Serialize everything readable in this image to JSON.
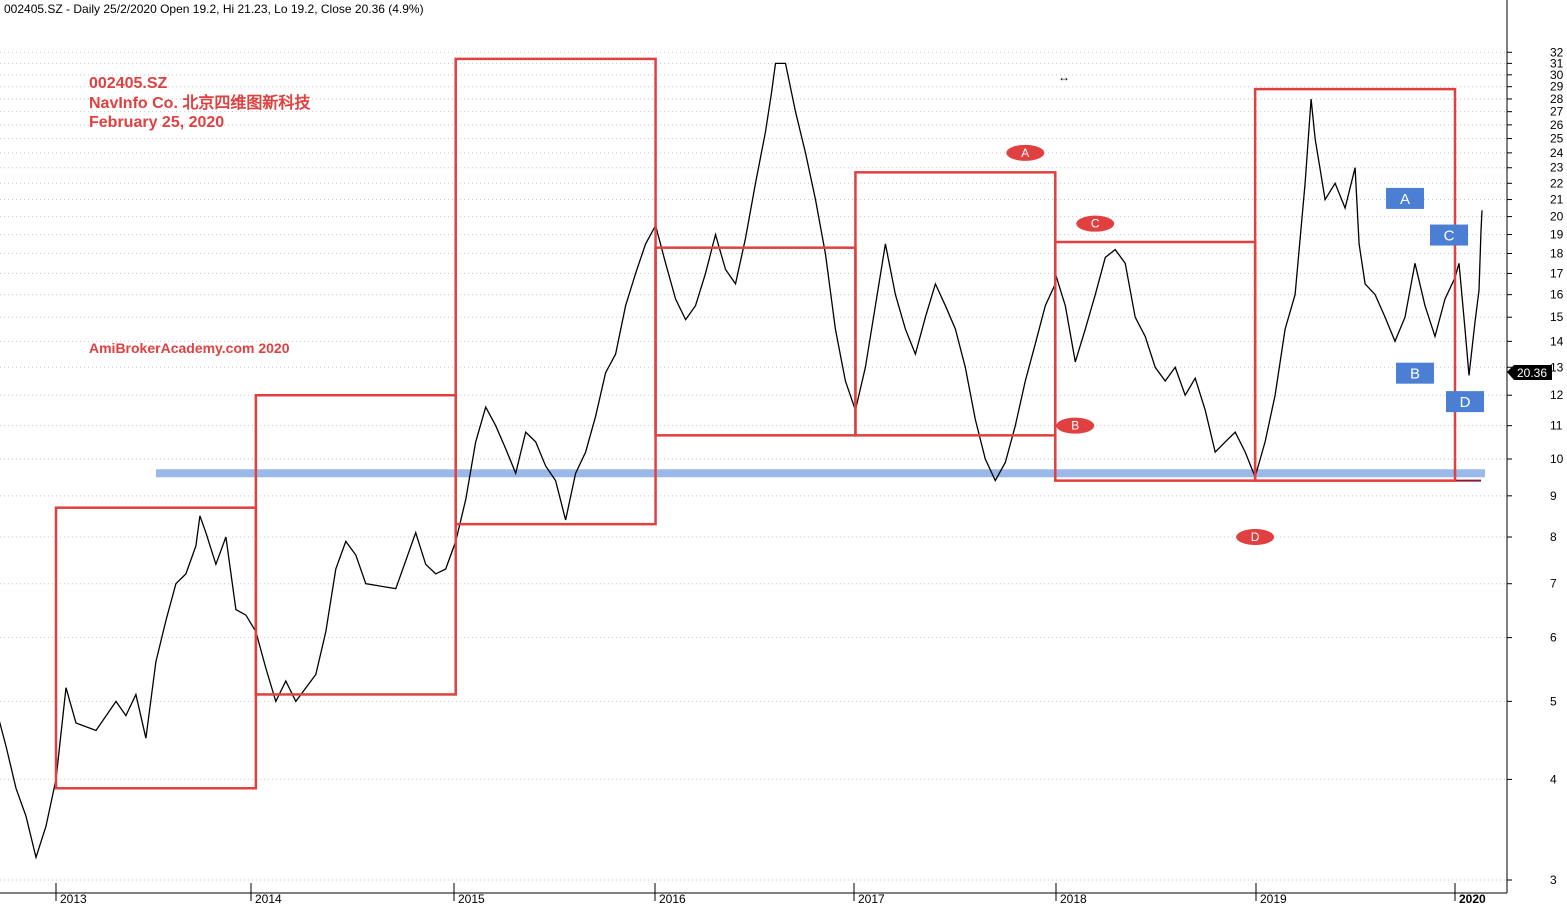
{
  "header_text": "002405.SZ - Daily 25/2/2020 Open 19.2, Hi 21.23, Lo 19.2, Close 20.36 (4.9%)",
  "annotation": {
    "ticker": "002405.SZ",
    "company": "NavInfo Co.  北京四维图新科技",
    "date": "February 25, 2020"
  },
  "watermark": "AmiBrokerAcademy.com   2020",
  "colors": {
    "box": "#e04040",
    "support": "#8fb0e6",
    "support_dark": "#8b1a3a",
    "price": "#000000",
    "red_label": "#e04040",
    "blue_label": "#4a7fd4",
    "grid": "#c8c8c8"
  },
  "chart_data": {
    "type": "line",
    "title": "",
    "xlabel": "",
    "ylabel": "",
    "x_range": [
      2012.65,
      2020.25
    ],
    "ylim": [
      2.5,
      32.5
    ],
    "y_scale": "log",
    "grid": "horizontal-dotted",
    "y_ticks": [
      3,
      4,
      5,
      6,
      7,
      8,
      9,
      10,
      11,
      12,
      13,
      14,
      15,
      16,
      17,
      18,
      19,
      20,
      21,
      22,
      23,
      24,
      25,
      26,
      27,
      28,
      29,
      30,
      31,
      32
    ],
    "x_ticks": [
      {
        "year": 2013,
        "label": "2013"
      },
      {
        "year": 2014,
        "label": "2014"
      },
      {
        "year": 2015,
        "label": "2015"
      },
      {
        "year": 2016,
        "label": "2016"
      },
      {
        "year": 2017,
        "label": "2017"
      },
      {
        "year": 2018,
        "label": "2018"
      },
      {
        "year": 2019,
        "label": "2019"
      },
      {
        "year": 2020,
        "label": "2020"
      }
    ],
    "last_price": "20.36",
    "price_series": [
      [
        2012.65,
        4.8
      ],
      [
        2012.7,
        4.9
      ],
      [
        2012.75,
        4.4
      ],
      [
        2012.8,
        3.9
      ],
      [
        2012.85,
        3.6
      ],
      [
        2012.9,
        3.2
      ],
      [
        2012.95,
        3.5
      ],
      [
        2013.0,
        4.0
      ],
      [
        2013.05,
        5.2
      ],
      [
        2013.1,
        4.7
      ],
      [
        2013.2,
        4.6
      ],
      [
        2013.3,
        5.0
      ],
      [
        2013.35,
        4.8
      ],
      [
        2013.4,
        5.1
      ],
      [
        2013.45,
        4.5
      ],
      [
        2013.5,
        5.6
      ],
      [
        2013.55,
        6.3
      ],
      [
        2013.6,
        7.0
      ],
      [
        2013.65,
        7.2
      ],
      [
        2013.7,
        7.8
      ],
      [
        2013.72,
        8.5
      ],
      [
        2013.75,
        8.1
      ],
      [
        2013.8,
        7.4
      ],
      [
        2013.85,
        8.0
      ],
      [
        2013.9,
        6.5
      ],
      [
        2013.95,
        6.4
      ],
      [
        2014.0,
        6.1
      ],
      [
        2014.05,
        5.5
      ],
      [
        2014.1,
        5.0
      ],
      [
        2014.15,
        5.3
      ],
      [
        2014.2,
        5.0
      ],
      [
        2014.3,
        5.4
      ],
      [
        2014.35,
        6.1
      ],
      [
        2014.4,
        7.3
      ],
      [
        2014.45,
        7.9
      ],
      [
        2014.5,
        7.6
      ],
      [
        2014.55,
        7.0
      ],
      [
        2014.7,
        6.9
      ],
      [
        2014.8,
        8.1
      ],
      [
        2014.85,
        7.4
      ],
      [
        2014.9,
        7.2
      ],
      [
        2014.95,
        7.3
      ],
      [
        2015.0,
        7.9
      ],
      [
        2015.05,
        8.9
      ],
      [
        2015.1,
        10.5
      ],
      [
        2015.15,
        11.6
      ],
      [
        2015.2,
        11.0
      ],
      [
        2015.25,
        10.3
      ],
      [
        2015.3,
        9.6
      ],
      [
        2015.35,
        10.8
      ],
      [
        2015.4,
        10.5
      ],
      [
        2015.45,
        9.8
      ],
      [
        2015.5,
        9.4
      ],
      [
        2015.55,
        8.4
      ],
      [
        2015.6,
        9.6
      ],
      [
        2015.65,
        10.2
      ],
      [
        2015.7,
        11.3
      ],
      [
        2015.75,
        12.8
      ],
      [
        2015.8,
        13.5
      ],
      [
        2015.85,
        15.5
      ],
      [
        2015.9,
        17.0
      ],
      [
        2015.95,
        18.5
      ],
      [
        2016.0,
        19.5
      ],
      [
        2016.05,
        17.5
      ],
      [
        2016.1,
        15.8
      ],
      [
        2016.15,
        14.9
      ],
      [
        2016.2,
        15.5
      ],
      [
        2016.25,
        17.0
      ],
      [
        2016.3,
        19.0
      ],
      [
        2016.35,
        17.2
      ],
      [
        2016.4,
        16.5
      ],
      [
        2016.45,
        18.8
      ],
      [
        2016.5,
        22.0
      ],
      [
        2016.55,
        25.5
      ],
      [
        2016.58,
        28.5
      ],
      [
        2016.6,
        31.0
      ],
      [
        2016.65,
        31.0
      ],
      [
        2016.7,
        27.0
      ],
      [
        2016.75,
        24.0
      ],
      [
        2016.8,
        21.0
      ],
      [
        2016.85,
        18.0
      ],
      [
        2016.9,
        14.5
      ],
      [
        2016.95,
        12.5
      ],
      [
        2017.0,
        11.5
      ],
      [
        2017.05,
        13.0
      ],
      [
        2017.1,
        15.5
      ],
      [
        2017.15,
        18.5
      ],
      [
        2017.2,
        16.0
      ],
      [
        2017.25,
        14.5
      ],
      [
        2017.3,
        13.5
      ],
      [
        2017.35,
        15.0
      ],
      [
        2017.4,
        16.5
      ],
      [
        2017.45,
        15.5
      ],
      [
        2017.5,
        14.5
      ],
      [
        2017.55,
        13.0
      ],
      [
        2017.6,
        11.2
      ],
      [
        2017.65,
        10.0
      ],
      [
        2017.7,
        9.4
      ],
      [
        2017.75,
        9.9
      ],
      [
        2017.8,
        11.0
      ],
      [
        2017.85,
        12.5
      ],
      [
        2017.9,
        13.9
      ],
      [
        2017.95,
        15.5
      ],
      [
        2018.0,
        16.5
      ]
    ],
    "rectangles": [
      {
        "x0": 2013.0,
        "x1": 2014.0,
        "y_low": 3.9,
        "y_high": 8.7
      },
      {
        "x0": 2014.0,
        "x1": 2015.0,
        "y_low": 5.1,
        "y_high": 12.0
      },
      {
        "x0": 2015.0,
        "x1": 2016.0,
        "y_low": 8.3,
        "y_high": 31.4
      },
      {
        "x0": 2016.0,
        "x1": 2017.0,
        "y_low": 10.7,
        "y_high": 18.3
      },
      {
        "x0": 2017.0,
        "x1": 2018.0,
        "y_low": 10.7,
        "y_high": 22.7
      },
      {
        "x0": 2018.0,
        "x1": 2019.0,
        "y_low": 9.4,
        "y_high": 18.6
      },
      {
        "x0": 2019.0,
        "x1": 2020.0,
        "y_low": 9.4,
        "y_high": 28.8
      }
    ],
    "support_line": {
      "x0": 2013.5,
      "x1": 2020.15,
      "y": 9.6
    },
    "labels": [
      {
        "text": "A",
        "shape": "red-ellipse",
        "x": 2017.85,
        "y": 24.0
      },
      {
        "text": "C",
        "shape": "red-ellipse",
        "x": 2018.2,
        "y": 19.6
      },
      {
        "text": "B",
        "shape": "red-ellipse",
        "x": 2018.1,
        "y": 11.0
      },
      {
        "text": "D",
        "shape": "red-ellipse",
        "x": 2019.0,
        "y": 8.0
      },
      {
        "text": "A",
        "shape": "blue-box",
        "x": 2019.75,
        "y": 21.1
      },
      {
        "text": "C",
        "shape": "blue-box",
        "x": 2019.97,
        "y": 19.0
      },
      {
        "text": "B",
        "shape": "blue-box",
        "x": 2019.8,
        "y": 12.8
      },
      {
        "text": "D",
        "shape": "blue-box",
        "x": 2020.05,
        "y": 11.8
      }
    ]
  }
}
